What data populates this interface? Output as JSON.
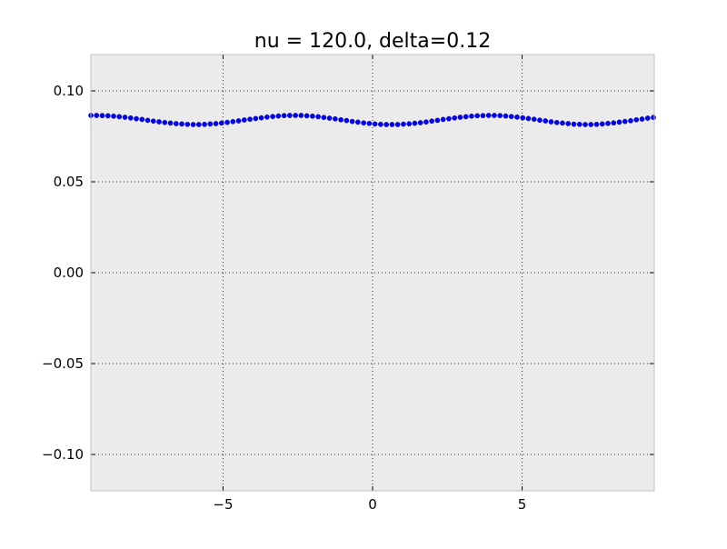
{
  "chart_data": {
    "type": "scatter",
    "title": "nu = 120.0, delta=0.12",
    "xlabel": "",
    "ylabel": "",
    "xlim": [
      -9.42,
      9.42
    ],
    "ylim": [
      -0.12,
      0.12
    ],
    "xticks": [
      -5,
      0,
      5
    ],
    "xtick_labels": [
      "−5",
      "0",
      "5"
    ],
    "yticks": [
      0.1,
      0.05,
      0.0,
      -0.05,
      -0.1
    ],
    "ytick_labels": [
      "0.10",
      "0.05",
      "0.00",
      "−0.05",
      "−0.10"
    ],
    "grid": true,
    "background": "#ebebeb",
    "series": [
      {
        "color": "#0000ff",
        "x": [
          -9.42,
          -9.23,
          -9.04,
          -8.85,
          -8.66,
          -8.47,
          -8.28,
          -8.09,
          -7.9,
          -7.71,
          -7.52,
          -7.33,
          -7.14,
          -6.95,
          -6.76,
          -6.57,
          -6.38,
          -6.19,
          -6.0,
          -5.81,
          -5.62,
          -5.43,
          -5.24,
          -5.05,
          -4.86,
          -4.67,
          -4.48,
          -4.29,
          -4.1,
          -3.91,
          -3.72,
          -3.53,
          -3.34,
          -3.15,
          -2.96,
          -2.77,
          -2.58,
          -2.39,
          -2.2,
          -2.01,
          -1.82,
          -1.63,
          -1.44,
          -1.25,
          -1.06,
          -0.87,
          -0.68,
          -0.49,
          -0.3,
          -0.11,
          0.08,
          0.27,
          0.46,
          0.65,
          0.84,
          1.03,
          1.22,
          1.41,
          1.6,
          1.79,
          1.98,
          2.17,
          2.36,
          2.55,
          2.74,
          2.93,
          3.12,
          3.31,
          3.5,
          3.69,
          3.88,
          4.07,
          4.26,
          4.45,
          4.64,
          4.83,
          5.02,
          5.21,
          5.4,
          5.59,
          5.78,
          5.97,
          6.16,
          6.35,
          6.54,
          6.73,
          6.92,
          7.11,
          7.3,
          7.49,
          7.68,
          7.87,
          8.06,
          8.25,
          8.44,
          8.63,
          8.82,
          9.01,
          9.2,
          9.39
        ],
        "y": [
          0.0865,
          0.0865,
          0.0864,
          0.0863,
          0.0861,
          0.0858,
          0.0855,
          0.0851,
          0.0847,
          0.0843,
          0.0838,
          0.0834,
          0.083,
          0.0826,
          0.0823,
          0.082,
          0.0818,
          0.0816,
          0.0815,
          0.0815,
          0.0816,
          0.0818,
          0.082,
          0.0823,
          0.0827,
          0.0831,
          0.0835,
          0.084,
          0.0844,
          0.0848,
          0.0852,
          0.0856,
          0.0859,
          0.0862,
          0.0864,
          0.0865,
          0.0865,
          0.0865,
          0.0863,
          0.0861,
          0.0858,
          0.0854,
          0.085,
          0.0846,
          0.0841,
          0.0837,
          0.0832,
          0.0828,
          0.0824,
          0.0821,
          0.0818,
          0.0816,
          0.0815,
          0.0815,
          0.0815,
          0.0817,
          0.0819,
          0.0822,
          0.0825,
          0.0829,
          0.0834,
          0.0838,
          0.0843,
          0.0847,
          0.0851,
          0.0855,
          0.0858,
          0.0861,
          0.0863,
          0.0864,
          0.0865,
          0.0865,
          0.0864,
          0.0862,
          0.0859,
          0.0856,
          0.0852,
          0.0848,
          0.0844,
          0.0839,
          0.0835,
          0.083,
          0.0826,
          0.0823,
          0.082,
          0.0817,
          0.0816,
          0.0815,
          0.0815,
          0.0816,
          0.0818,
          0.0821,
          0.0824,
          0.0828,
          0.0832,
          0.0836,
          0.0841,
          0.0845,
          0.085,
          0.0854
        ]
      }
    ]
  }
}
